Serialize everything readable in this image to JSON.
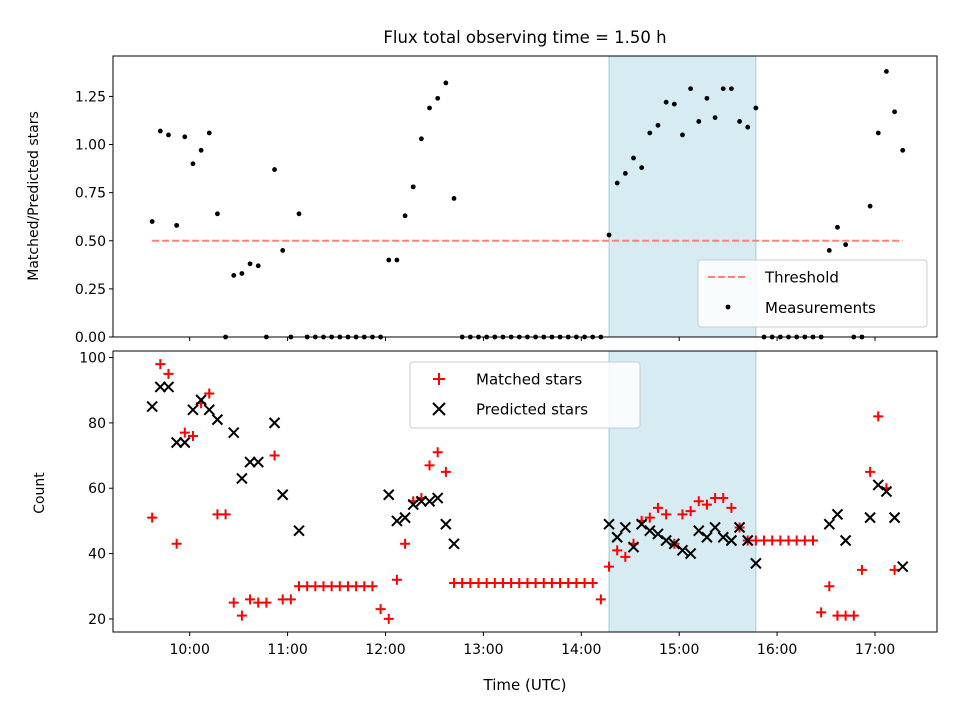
{
  "chart_data": [
    {
      "type": "scatter",
      "title": "Flux total observing time = 1.50 h",
      "xlabel": "",
      "ylabel": "Matched/Predicted stars",
      "xlim": [
        "09:13",
        "17:38"
      ],
      "ylim": [
        0,
        1.46
      ],
      "yticks": [
        0,
        0.25,
        0.5,
        0.75,
        1.0,
        1.25
      ],
      "ytick_labels": [
        "0.00",
        "0.25",
        "0.50",
        "0.75",
        "1.00",
        "1.25"
      ],
      "highlight_span": [
        "14:17",
        "15:47"
      ],
      "threshold": {
        "name": "Threshold",
        "value": 0.5,
        "x_range": [
          "09:37",
          "17:17"
        ],
        "color": "#ff7f7f",
        "style": "dashed"
      },
      "legend": [
        "Threshold",
        "Measurements"
      ],
      "legend_location": "lower right",
      "series": [
        {
          "name": "Measurements",
          "color": "#000000",
          "marker": "dot",
          "points": [
            [
              "09:37",
              0.6
            ],
            [
              "09:42",
              1.07
            ],
            [
              "09:47",
              1.05
            ],
            [
              "09:52",
              0.58
            ],
            [
              "09:57",
              1.04
            ],
            [
              "10:02",
              0.9
            ],
            [
              "10:07",
              0.97
            ],
            [
              "10:12",
              1.06
            ],
            [
              "10:17",
              0.64
            ],
            [
              "10:22",
              0.0
            ],
            [
              "10:27",
              0.32
            ],
            [
              "10:32",
              0.33
            ],
            [
              "10:37",
              0.38
            ],
            [
              "10:42",
              0.37
            ],
            [
              "10:47",
              0.0
            ],
            [
              "10:52",
              0.87
            ],
            [
              "10:57",
              0.45
            ],
            [
              "11:02",
              0.0
            ],
            [
              "11:07",
              0.64
            ],
            [
              "11:12",
              0.0
            ],
            [
              "11:17",
              0.0
            ],
            [
              "11:22",
              0.0
            ],
            [
              "11:27",
              0.0
            ],
            [
              "11:32",
              0.0
            ],
            [
              "11:37",
              0.0
            ],
            [
              "11:42",
              0.0
            ],
            [
              "11:47",
              0.0
            ],
            [
              "11:52",
              0.0
            ],
            [
              "11:57",
              0.0
            ],
            [
              "12:02",
              0.4
            ],
            [
              "12:07",
              0.4
            ],
            [
              "12:12",
              0.63
            ],
            [
              "12:17",
              0.78
            ],
            [
              "12:22",
              1.03
            ],
            [
              "12:27",
              1.19
            ],
            [
              "12:32",
              1.24
            ],
            [
              "12:37",
              1.32
            ],
            [
              "12:42",
              0.72
            ],
            [
              "12:47",
              0.0
            ],
            [
              "12:52",
              0.0
            ],
            [
              "12:57",
              0.0
            ],
            [
              "13:02",
              0.0
            ],
            [
              "13:07",
              0.0
            ],
            [
              "13:12",
              0.0
            ],
            [
              "13:17",
              0.0
            ],
            [
              "13:22",
              0.0
            ],
            [
              "13:27",
              0.0
            ],
            [
              "13:32",
              0.0
            ],
            [
              "13:37",
              0.0
            ],
            [
              "13:42",
              0.0
            ],
            [
              "13:47",
              0.0
            ],
            [
              "13:52",
              0.0
            ],
            [
              "13:57",
              0.0
            ],
            [
              "14:02",
              0.0
            ],
            [
              "14:07",
              0.0
            ],
            [
              "14:12",
              0.0
            ],
            [
              "14:17",
              0.53
            ],
            [
              "14:22",
              0.8
            ],
            [
              "14:27",
              0.85
            ],
            [
              "14:32",
              0.93
            ],
            [
              "14:37",
              0.88
            ],
            [
              "14:42",
              1.06
            ],
            [
              "14:47",
              1.1
            ],
            [
              "14:52",
              1.22
            ],
            [
              "14:57",
              1.21
            ],
            [
              "15:02",
              1.05
            ],
            [
              "15:07",
              1.29
            ],
            [
              "15:12",
              1.12
            ],
            [
              "15:17",
              1.24
            ],
            [
              "15:22",
              1.14
            ],
            [
              "15:27",
              1.29
            ],
            [
              "15:32",
              1.29
            ],
            [
              "15:37",
              1.12
            ],
            [
              "15:42",
              1.09
            ],
            [
              "15:47",
              1.19
            ],
            [
              "15:52",
              0.0
            ],
            [
              "15:57",
              0.0
            ],
            [
              "16:02",
              0.0
            ],
            [
              "16:07",
              0.0
            ],
            [
              "16:12",
              0.0
            ],
            [
              "16:17",
              0.0
            ],
            [
              "16:22",
              0.0
            ],
            [
              "16:27",
              0.0
            ],
            [
              "16:32",
              0.45
            ],
            [
              "16:37",
              0.57
            ],
            [
              "16:42",
              0.48
            ],
            [
              "16:47",
              0.0
            ],
            [
              "16:52",
              0.0
            ],
            [
              "16:57",
              0.68
            ],
            [
              "17:02",
              1.06
            ],
            [
              "17:07",
              1.38
            ],
            [
              "17:12",
              1.17
            ],
            [
              "17:17",
              0.97
            ]
          ]
        }
      ]
    },
    {
      "type": "scatter",
      "title": "",
      "xlabel": "Time (UTC)",
      "ylabel": "Count",
      "xlim": [
        "09:13",
        "17:38"
      ],
      "ylim": [
        16,
        102
      ],
      "xticks": [
        "10:00",
        "11:00",
        "12:00",
        "13:00",
        "14:00",
        "15:00",
        "16:00",
        "17:00"
      ],
      "yticks": [
        20,
        40,
        60,
        80,
        100
      ],
      "highlight_span": [
        "14:17",
        "15:47"
      ],
      "legend": [
        "Matched stars",
        "Predicted stars"
      ],
      "legend_location": "upper center",
      "series": [
        {
          "name": "Matched stars",
          "color": "#ff0000",
          "marker": "plus",
          "points": [
            [
              "09:37",
              51
            ],
            [
              "09:42",
              98
            ],
            [
              "09:47",
              95
            ],
            [
              "09:52",
              43
            ],
            [
              "09:57",
              77
            ],
            [
              "10:02",
              76
            ],
            [
              "10:07",
              86
            ],
            [
              "10:12",
              89
            ],
            [
              "10:17",
              52
            ],
            [
              "10:22",
              52
            ],
            [
              "10:27",
              25
            ],
            [
              "10:32",
              21
            ],
            [
              "10:37",
              26
            ],
            [
              "10:42",
              25
            ],
            [
              "10:47",
              25
            ],
            [
              "10:52",
              70
            ],
            [
              "10:57",
              26
            ],
            [
              "11:02",
              26
            ],
            [
              "11:07",
              30
            ],
            [
              "11:12",
              30
            ],
            [
              "11:17",
              30
            ],
            [
              "11:22",
              30
            ],
            [
              "11:27",
              30
            ],
            [
              "11:32",
              30
            ],
            [
              "11:37",
              30
            ],
            [
              "11:42",
              30
            ],
            [
              "11:47",
              30
            ],
            [
              "11:52",
              30
            ],
            [
              "11:57",
              23
            ],
            [
              "12:02",
              20
            ],
            [
              "12:07",
              32
            ],
            [
              "12:12",
              43
            ],
            [
              "12:17",
              56
            ],
            [
              "12:22",
              57
            ],
            [
              "12:27",
              67
            ],
            [
              "12:32",
              71
            ],
            [
              "12:37",
              65
            ],
            [
              "12:42",
              31
            ],
            [
              "12:47",
              31
            ],
            [
              "12:52",
              31
            ],
            [
              "12:57",
              31
            ],
            [
              "13:02",
              31
            ],
            [
              "13:07",
              31
            ],
            [
              "13:12",
              31
            ],
            [
              "13:17",
              31
            ],
            [
              "13:22",
              31
            ],
            [
              "13:27",
              31
            ],
            [
              "13:32",
              31
            ],
            [
              "13:37",
              31
            ],
            [
              "13:42",
              31
            ],
            [
              "13:47",
              31
            ],
            [
              "13:52",
              31
            ],
            [
              "13:57",
              31
            ],
            [
              "14:02",
              31
            ],
            [
              "14:07",
              31
            ],
            [
              "14:12",
              26
            ],
            [
              "14:17",
              36
            ],
            [
              "14:22",
              41
            ],
            [
              "14:27",
              39
            ],
            [
              "14:32",
              43
            ],
            [
              "14:37",
              50
            ],
            [
              "14:42",
              51
            ],
            [
              "14:47",
              54
            ],
            [
              "14:52",
              52
            ],
            [
              "14:57",
              43
            ],
            [
              "15:02",
              52
            ],
            [
              "15:07",
              53
            ],
            [
              "15:12",
              56
            ],
            [
              "15:17",
              55
            ],
            [
              "15:22",
              57
            ],
            [
              "15:27",
              57
            ],
            [
              "15:32",
              54
            ],
            [
              "15:37",
              48
            ],
            [
              "15:42",
              44
            ],
            [
              "15:47",
              44
            ],
            [
              "15:52",
              44
            ],
            [
              "15:57",
              44
            ],
            [
              "16:02",
              44
            ],
            [
              "16:07",
              44
            ],
            [
              "16:12",
              44
            ],
            [
              "16:17",
              44
            ],
            [
              "16:22",
              44
            ],
            [
              "16:27",
              22
            ],
            [
              "16:32",
              30
            ],
            [
              "16:37",
              21
            ],
            [
              "16:42",
              21
            ],
            [
              "16:47",
              21
            ],
            [
              "16:52",
              35
            ],
            [
              "16:57",
              65
            ],
            [
              "17:02",
              82
            ],
            [
              "17:07",
              60
            ],
            [
              "17:12",
              35
            ]
          ]
        },
        {
          "name": "Predicted stars",
          "color": "#000000",
          "marker": "x",
          "points": [
            [
              "09:37",
              85
            ],
            [
              "09:42",
              91
            ],
            [
              "09:47",
              91
            ],
            [
              "09:52",
              74
            ],
            [
              "09:57",
              74
            ],
            [
              "10:02",
              84
            ],
            [
              "10:07",
              87
            ],
            [
              "10:12",
              84
            ],
            [
              "10:17",
              81
            ],
            [
              "10:27",
              77
            ],
            [
              "10:32",
              63
            ],
            [
              "10:37",
              68
            ],
            [
              "10:42",
              68
            ],
            [
              "10:52",
              80
            ],
            [
              "10:57",
              58
            ],
            [
              "11:07",
              47
            ],
            [
              "12:02",
              58
            ],
            [
              "12:07",
              50
            ],
            [
              "12:12",
              51
            ],
            [
              "12:17",
              55
            ],
            [
              "12:22",
              56
            ],
            [
              "12:27",
              56
            ],
            [
              "12:32",
              57
            ],
            [
              "12:37",
              49
            ],
            [
              "12:42",
              43
            ],
            [
              "14:17",
              49
            ],
            [
              "14:22",
              45
            ],
            [
              "14:27",
              48
            ],
            [
              "14:32",
              42
            ],
            [
              "14:37",
              49
            ],
            [
              "14:42",
              47
            ],
            [
              "14:47",
              46
            ],
            [
              "14:52",
              44
            ],
            [
              "14:57",
              43
            ],
            [
              "15:02",
              41
            ],
            [
              "15:07",
              40
            ],
            [
              "15:12",
              47
            ],
            [
              "15:17",
              45
            ],
            [
              "15:22",
              48
            ],
            [
              "15:27",
              45
            ],
            [
              "15:32",
              44
            ],
            [
              "15:37",
              48
            ],
            [
              "15:42",
              44
            ],
            [
              "15:47",
              37
            ],
            [
              "16:32",
              49
            ],
            [
              "16:37",
              52
            ],
            [
              "16:42",
              44
            ],
            [
              "16:57",
              51
            ],
            [
              "17:02",
              61
            ],
            [
              "17:07",
              59
            ],
            [
              "17:12",
              51
            ],
            [
              "17:17",
              36
            ]
          ]
        }
      ]
    }
  ]
}
